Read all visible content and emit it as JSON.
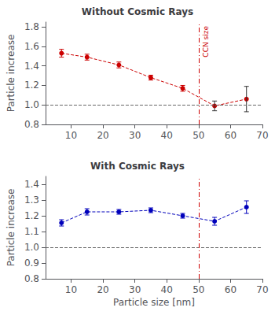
{
  "chart_data": [
    {
      "type": "line",
      "title": "Without Cosmic Rays",
      "x": [
        7,
        15,
        25,
        35,
        45,
        55,
        65
      ],
      "values": [
        1.53,
        1.49,
        1.41,
        1.28,
        1.17,
        0.99,
        1.06
      ],
      "error_bars": {
        "values": [
          0.04,
          0.03,
          0.03,
          0.025,
          0.03,
          0.05,
          0.13
        ],
        "colors": [
          "#cc0000",
          "#cc0000",
          "#cc0000",
          "#cc0000",
          "#cc0000",
          "#333333",
          "#333333"
        ]
      },
      "color": "#cc0000",
      "marker": "circle",
      "line_style": "dashed",
      "xlim": [
        2,
        70
      ],
      "xticks": [
        10,
        20,
        30,
        40,
        50,
        60,
        70
      ],
      "ylim": [
        0.8,
        1.85
      ],
      "yticks": [
        0.8,
        {
          "value": 1.0,
          "label": "1.0"
        },
        1.2,
        1.4,
        1.6,
        1.8
      ],
      "ylabel": "Particle increase",
      "grid": false,
      "reference_lines": [
        {
          "axis": "y",
          "value": 1.0,
          "color": "#666666",
          "line_style": "dashed"
        },
        {
          "axis": "x",
          "value": 50,
          "color": "#cc0000",
          "line_style": "dashdot",
          "label": "CCN size"
        }
      ]
    },
    {
      "type": "line",
      "title": "With Cosmic Rays",
      "x": [
        7,
        15,
        25,
        35,
        45,
        55,
        65
      ],
      "values": [
        1.155,
        1.225,
        1.225,
        1.235,
        1.2,
        1.165,
        1.255
      ],
      "error_bars": {
        "values": [
          0.02,
          0.02,
          0.015,
          0.015,
          0.015,
          0.025,
          0.04
        ]
      },
      "color": "#0000bb",
      "marker": "circle",
      "line_style": "dashed",
      "xlim": [
        2,
        70
      ],
      "xticks": [
        10,
        20,
        30,
        40,
        50,
        60,
        70
      ],
      "ylim": [
        0.8,
        1.45
      ],
      "yticks": [
        0.8,
        0.9,
        {
          "value": 1.0,
          "label": "1.0"
        },
        1.1,
        1.2,
        1.3,
        1.4
      ],
      "xlabel": "Particle size [nm]",
      "ylabel": "Particle increase",
      "grid": false,
      "reference_lines": [
        {
          "axis": "y",
          "value": 1.0,
          "color": "#666666",
          "line_style": "dashed"
        },
        {
          "axis": "x",
          "value": 50,
          "color": "#cc0000",
          "line_style": "dashdot"
        }
      ]
    }
  ]
}
